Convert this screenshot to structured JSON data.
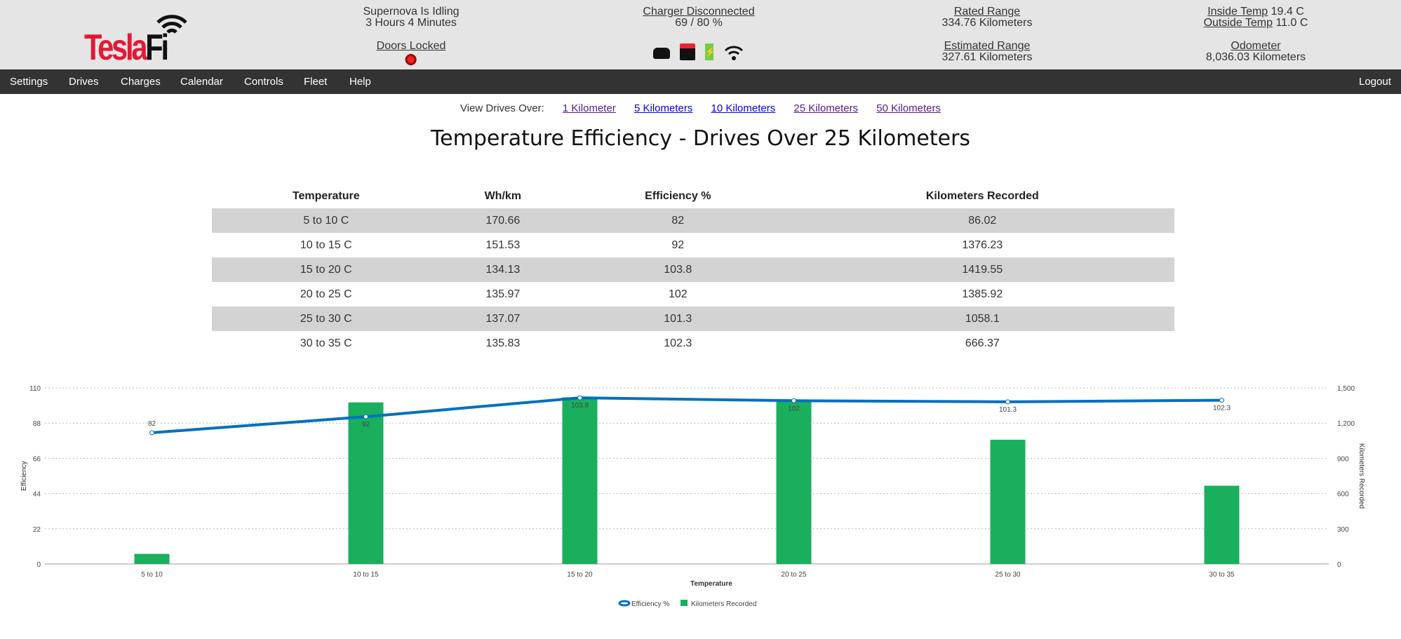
{
  "header": {
    "logo_text": "TeslaFi",
    "status": "Supernova Is Idling",
    "status_time": "3 Hours 4 Minutes",
    "doors": "Doors Locked",
    "charger": "Charger Disconnected",
    "charge_level": "69 / 80 %",
    "rated_range_label": "Rated Range",
    "rated_range": "334.76 Kilometers",
    "est_range_label": "Estimated Range",
    "est_range": "327.61 Kilometers",
    "inside_label": "Inside Temp",
    "inside": "19.4 C",
    "outside_label": "Outside Temp",
    "outside": "11.0 C",
    "odometer_label": "Odometer",
    "odometer": "8,036.03 Kilometers"
  },
  "nav": {
    "items": [
      "Settings",
      "Drives",
      "Charges",
      "Calendar",
      "Controls",
      "Fleet",
      "Help"
    ],
    "logout": "Logout"
  },
  "filter": {
    "label": "View Drives Over:",
    "options": [
      "1 Kilometer",
      "5 Kilometers",
      "10 Kilometers",
      "25 Kilometers",
      "50 Kilometers"
    ]
  },
  "title": "Temperature Efficiency - Drives Over 25 Kilometers",
  "table": {
    "headers": [
      "Temperature",
      "Wh/km",
      "Efficiency %",
      "Kilometers Recorded"
    ],
    "rows": [
      [
        "5 to 10 C",
        "170.66",
        "82",
        "86.02"
      ],
      [
        "10 to 15 C",
        "151.53",
        "92",
        "1376.23"
      ],
      [
        "15 to 20 C",
        "134.13",
        "103.8",
        "1419.55"
      ],
      [
        "20 to 25 C",
        "135.97",
        "102",
        "1385.92"
      ],
      [
        "25 to 30 C",
        "137.07",
        "101.3",
        "1058.1"
      ],
      [
        "30 to 35 C",
        "135.83",
        "102.3",
        "666.37"
      ]
    ]
  },
  "chart_data": {
    "type": "bar+line",
    "categories": [
      "5 to 10",
      "10 to 15",
      "15 to 20",
      "20 to 25",
      "25 to 30",
      "30 to 35"
    ],
    "series": [
      {
        "name": "Efficiency %",
        "type": "line",
        "axis": "left",
        "color": "#0070c0",
        "values": [
          82,
          92,
          103.8,
          102,
          101.3,
          102.3
        ]
      },
      {
        "name": "Kilometers Recorded",
        "type": "bar",
        "axis": "right",
        "color": "#1aaf5d",
        "values": [
          86.02,
          1376.23,
          1419.55,
          1385.92,
          1058.1,
          666.37
        ]
      }
    ],
    "xlabel": "Temperature",
    "ylabel": "Efficiency",
    "y2label": "Kilometers Recorded",
    "ylim": [
      0,
      110
    ],
    "yticks": [
      "0",
      "22",
      "44",
      "66",
      "88",
      "110"
    ],
    "y2lim": [
      0,
      1500
    ],
    "y2ticks": [
      "0",
      "300",
      "600",
      "900",
      "1,200",
      "1,500"
    ],
    "grid": true,
    "legend": "bottom-center"
  }
}
